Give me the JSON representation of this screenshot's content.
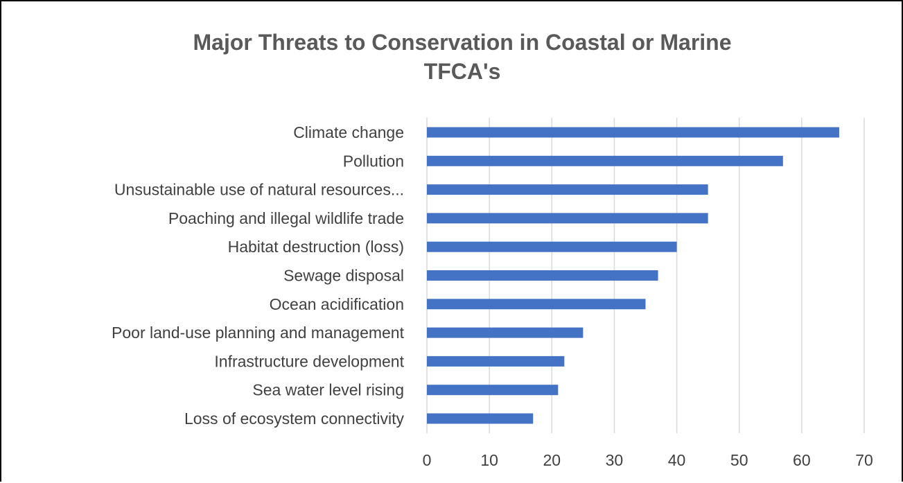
{
  "chart_data": {
    "type": "bar",
    "orientation": "horizontal",
    "title": "Major Threats to Conservation in Coastal or Marine TFCA's",
    "title_lines": [
      "Major Threats to Conservation in Coastal or Marine",
      "TFCA's"
    ],
    "categories": [
      "Climate change",
      "Pollution",
      "Unsustainable use of natural resources...",
      "Poaching and illegal wildlife trade",
      "Habitat destruction (loss)",
      "Sewage disposal",
      "Ocean acidification",
      "Poor land-use planning and management",
      "Infrastructure development",
      "Sea water level rising",
      "Loss of ecosystem connectivity"
    ],
    "values": [
      66,
      57,
      45,
      45,
      40,
      37,
      35,
      25,
      22,
      21,
      17
    ],
    "xlim": [
      0,
      70
    ],
    "xticks": [
      0,
      10,
      20,
      30,
      40,
      50,
      60,
      70
    ],
    "grid": "vertical",
    "legend": "none",
    "bar_color": "#4472c4",
    "grid_color": "#d9d9d9",
    "text_color": "#404040"
  }
}
